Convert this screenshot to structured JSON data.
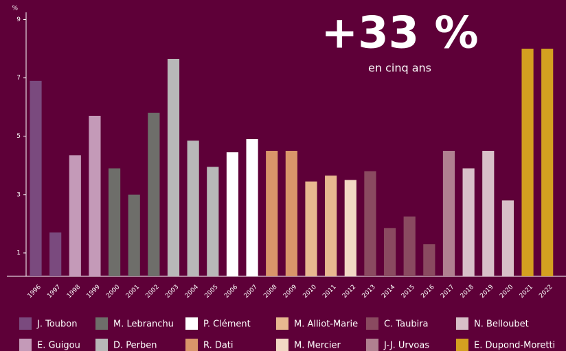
{
  "chart_data": {
    "type": "bar",
    "annotation": "+33 %",
    "annotation_sub": "en cinq ans",
    "ylabel": "%",
    "categories": [
      "1996",
      "1997",
      "1998",
      "1999",
      "2000",
      "2001",
      "2002",
      "2003",
      "2004",
      "2005",
      "2006",
      "2007",
      "2008",
      "2009",
      "2010",
      "2011",
      "2012",
      "2013",
      "2014",
      "2015",
      "2016",
      "2017",
      "2018",
      "2019",
      "2020",
      "2021",
      "2022"
    ],
    "values": [
      6.9,
      1.7,
      4.35,
      5.7,
      3.9,
      3.0,
      5.8,
      7.65,
      4.85,
      3.95,
      4.45,
      4.9,
      4.5,
      4.5,
      3.45,
      3.65,
      3.5,
      3.8,
      1.85,
      2.25,
      1.3,
      4.5,
      3.9,
      4.5,
      2.8,
      8.0,
      8.0
    ],
    "colors": [
      "#7a4a7e",
      "#7a4a7e",
      "#c49ab8",
      "#c49ab8",
      "#6e6e6a",
      "#6e6e6a",
      "#6e6e6a",
      "#b8b8b8",
      "#b8b8b8",
      "#b8b8b8",
      "#ffffff",
      "#ffffff",
      "#d9956a",
      "#d9956a",
      "#e8b890",
      "#e8b890",
      "#f2d8c4",
      "#8a4a60",
      "#8a4a60",
      "#8a4a60",
      "#8a4a60",
      "#b08090",
      "#d8c0c8",
      "#d8c0c8",
      "#d8c0c8",
      "#d4a020",
      "#d4a020"
    ],
    "ylim": [
      0.2,
      9.2
    ],
    "yticks": [
      1,
      3,
      5,
      7,
      9
    ],
    "legend": [
      {
        "name": "J. Toubon",
        "color": "#7a4a7e"
      },
      {
        "name": "M. Lebranchu",
        "color": "#6e6e6a"
      },
      {
        "name": "P. Clément",
        "color": "#ffffff"
      },
      {
        "name": "M. Alliot-Marie",
        "color": "#e8b890"
      },
      {
        "name": "C. Taubira",
        "color": "#8a4a60"
      },
      {
        "name": "N. Belloubet",
        "color": "#d8c0c8"
      },
      {
        "name": "E. Guigou",
        "color": "#c49ab8"
      },
      {
        "name": "D. Perben",
        "color": "#b8b8b8"
      },
      {
        "name": "R. Dati",
        "color": "#d9956a"
      },
      {
        "name": "M. Mercier",
        "color": "#f2d8c4"
      },
      {
        "name": "J-J. Urvoas",
        "color": "#b08090"
      },
      {
        "name": "E. Dupond-Moretti",
        "color": "#d4a020"
      }
    ]
  }
}
